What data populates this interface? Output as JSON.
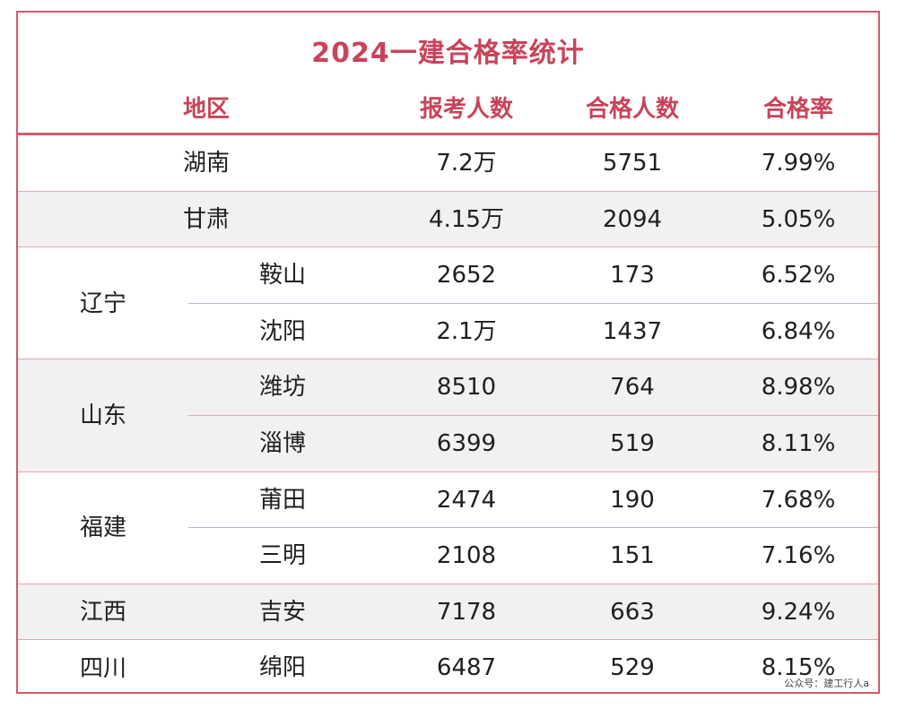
{
  "title": "2024一建合格率统计",
  "headers": {
    "region": "地区",
    "applicants": "报考人数",
    "passed": "合格人数",
    "rate": "合格率"
  },
  "rows": [
    {
      "province": "湖南",
      "city": "",
      "applicants": "7.2万",
      "passed": "5751",
      "rate": "7.99%"
    },
    {
      "province": "甘肃",
      "city": "",
      "applicants": "4.15万",
      "passed": "2094",
      "rate": "5.05%"
    },
    {
      "province": "辽宁",
      "city": "鞍山",
      "applicants": "2652",
      "passed": "173",
      "rate": "6.52%"
    },
    {
      "province": "辽宁",
      "city": "沈阳",
      "applicants": "2.1万",
      "passed": "1437",
      "rate": "6.84%"
    },
    {
      "province": "山东",
      "city": "潍坊",
      "applicants": "8510",
      "passed": "764",
      "rate": "8.98%"
    },
    {
      "province": "山东",
      "city": "淄博",
      "applicants": "6399",
      "passed": "519",
      "rate": "8.11%"
    },
    {
      "province": "福建",
      "city": "莆田",
      "applicants": "2474",
      "passed": "190",
      "rate": "7.68%"
    },
    {
      "province": "福建",
      "city": "三明",
      "applicants": "2108",
      "passed": "151",
      "rate": "7.16%"
    },
    {
      "province": "江西",
      "city": "吉安",
      "applicants": "7178",
      "passed": "663",
      "rate": "9.24%"
    },
    {
      "province": "四川",
      "city": "绵阳",
      "applicants": "6487",
      "passed": "529",
      "rate": "8.15%"
    }
  ],
  "footnote": "公众号：建工行人a",
  "colors": {
    "accent": "#c8445a",
    "border": "#d35a6d",
    "stripe": "#f1f1f1"
  }
}
